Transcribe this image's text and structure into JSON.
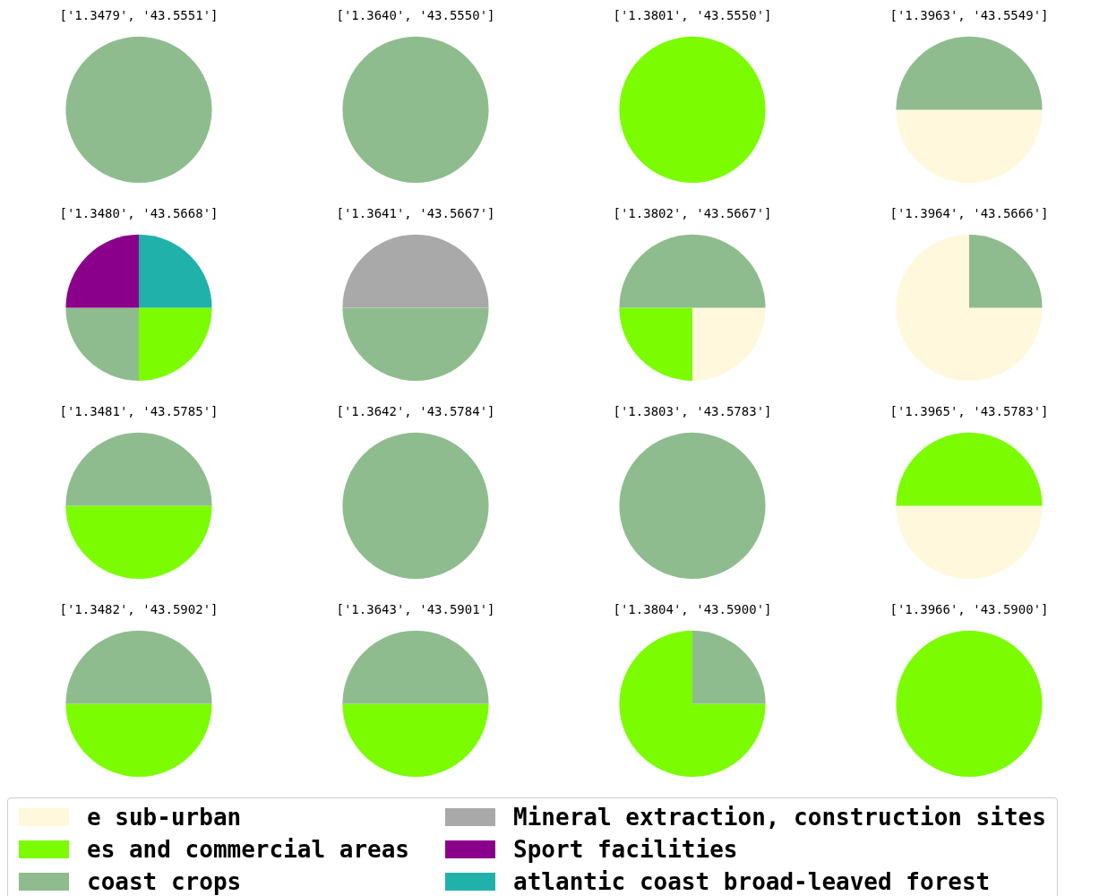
{
  "chart_data": [
    {
      "type": "pie",
      "title": "['1.3479', '43.5551']",
      "categories": [
        "e sub-urban",
        "es and commercial areas",
        "coast crops",
        "Mineral extraction, construction sites",
        "Sport facilities",
        "atlantic coast broad-leaved forest"
      ],
      "values": [
        0,
        0,
        100,
        0,
        0,
        0
      ],
      "colors": [
        "#fff8dc",
        "#7cfc00",
        "#8fbc8f",
        "#a9a9a9",
        "#8b008b",
        "#20b2aa"
      ],
      "legend": "bottom"
    },
    {
      "type": "pie",
      "title": "['1.3640', '43.5550']",
      "values": [
        0,
        0,
        100,
        0,
        0,
        0
      ],
      "colors": [
        "#fff8dc",
        "#7cfc00",
        "#8fbc8f",
        "#a9a9a9",
        "#8b008b",
        "#20b2aa"
      ]
    },
    {
      "type": "pie",
      "title": "['1.3801', '43.5550']",
      "values": [
        0,
        100,
        0,
        0,
        0,
        0
      ],
      "colors": [
        "#fff8dc",
        "#7cfc00",
        "#8fbc8f",
        "#a9a9a9",
        "#8b008b",
        "#20b2aa"
      ]
    },
    {
      "type": "pie",
      "title": "['1.3963', '43.5549']",
      "values": [
        50,
        0,
        50,
        0,
        0,
        0
      ],
      "colors": [
        "#fff8dc",
        "#7cfc00",
        "#8fbc8f",
        "#a9a9a9",
        "#8b008b",
        "#20b2aa"
      ]
    },
    {
      "type": "pie",
      "title": "['1.3480', '43.5668']",
      "values": [
        0,
        25,
        25,
        0,
        25,
        25
      ],
      "colors": [
        "#fff8dc",
        "#7cfc00",
        "#8fbc8f",
        "#a9a9a9",
        "#8b008b",
        "#20b2aa"
      ]
    },
    {
      "type": "pie",
      "title": "['1.3641', '43.5667']",
      "values": [
        0,
        0,
        50,
        50,
        0,
        0
      ],
      "colors": [
        "#fff8dc",
        "#7cfc00",
        "#8fbc8f",
        "#a9a9a9",
        "#8b008b",
        "#20b2aa"
      ]
    },
    {
      "type": "pie",
      "title": "['1.3802', '43.5667']",
      "values": [
        25,
        25,
        50,
        0,
        0,
        0
      ],
      "colors": [
        "#fff8dc",
        "#7cfc00",
        "#8fbc8f",
        "#a9a9a9",
        "#8b008b",
        "#20b2aa"
      ]
    },
    {
      "type": "pie",
      "title": "['1.3964', '43.5666']",
      "values": [
        75,
        0,
        25,
        0,
        0,
        0
      ],
      "colors": [
        "#fff8dc",
        "#7cfc00",
        "#8fbc8f",
        "#a9a9a9",
        "#8b008b",
        "#20b2aa"
      ]
    },
    {
      "type": "pie",
      "title": "['1.3481', '43.5785']",
      "values": [
        0,
        50,
        50,
        0,
        0,
        0
      ],
      "colors": [
        "#fff8dc",
        "#7cfc00",
        "#8fbc8f",
        "#a9a9a9",
        "#8b008b",
        "#20b2aa"
      ]
    },
    {
      "type": "pie",
      "title": "['1.3642', '43.5784']",
      "values": [
        0,
        0,
        100,
        0,
        0,
        0
      ],
      "colors": [
        "#fff8dc",
        "#7cfc00",
        "#8fbc8f",
        "#a9a9a9",
        "#8b008b",
        "#20b2aa"
      ]
    },
    {
      "type": "pie",
      "title": "['1.3803', '43.5783']",
      "values": [
        0,
        0,
        100,
        0,
        0,
        0
      ],
      "colors": [
        "#fff8dc",
        "#7cfc00",
        "#8fbc8f",
        "#a9a9a9",
        "#8b008b",
        "#20b2aa"
      ]
    },
    {
      "type": "pie",
      "title": "['1.3965', '43.5783']",
      "values": [
        50,
        50,
        0,
        0,
        0,
        0
      ],
      "colors": [
        "#fff8dc",
        "#7cfc00",
        "#8fbc8f",
        "#a9a9a9",
        "#8b008b",
        "#20b2aa"
      ]
    },
    {
      "type": "pie",
      "title": "['1.3482', '43.5902']",
      "values": [
        0,
        50,
        50,
        0,
        0,
        0
      ],
      "colors": [
        "#fff8dc",
        "#7cfc00",
        "#8fbc8f",
        "#a9a9a9",
        "#8b008b",
        "#20b2aa"
      ]
    },
    {
      "type": "pie",
      "title": "['1.3643', '43.5901']",
      "values": [
        0,
        50,
        50,
        0,
        0,
        0
      ],
      "colors": [
        "#fff8dc",
        "#7cfc00",
        "#8fbc8f",
        "#a9a9a9",
        "#8b008b",
        "#20b2aa"
      ]
    },
    {
      "type": "pie",
      "title": "['1.3804', '43.5900']",
      "values": [
        0,
        75,
        25,
        0,
        0,
        0
      ],
      "colors": [
        "#fff8dc",
        "#7cfc00",
        "#8fbc8f",
        "#a9a9a9",
        "#8b008b",
        "#20b2aa"
      ]
    },
    {
      "type": "pie",
      "title": "['1.3966', '43.5900']",
      "values": [
        0,
        100,
        0,
        0,
        0,
        0
      ],
      "colors": [
        "#fff8dc",
        "#7cfc00",
        "#8fbc8f",
        "#a9a9a9",
        "#8b008b",
        "#20b2aa"
      ]
    }
  ]
}
